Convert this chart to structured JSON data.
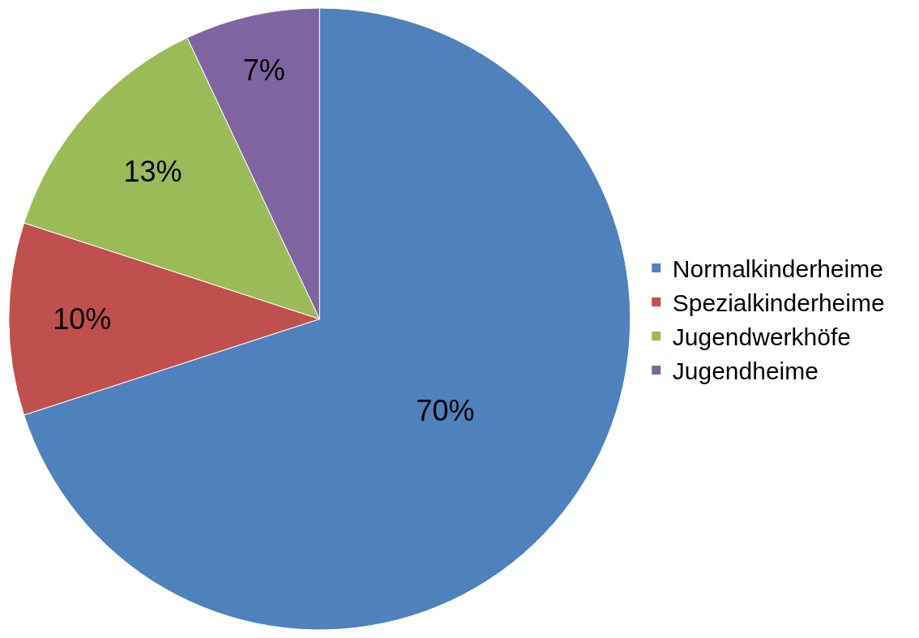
{
  "chart_data": {
    "type": "pie",
    "categories": [
      "Normalkinderheime",
      "Spezialkinderheime",
      "Jugendwerkhöfe",
      "Jugendheime"
    ],
    "values": [
      70,
      10,
      13,
      7
    ],
    "colors": [
      "#4f81bd",
      "#c0504d",
      "#9bbb59",
      "#8064a2"
    ],
    "value_labels": [
      "70%",
      "10%",
      "13%",
      "7%"
    ],
    "legend": "right"
  }
}
